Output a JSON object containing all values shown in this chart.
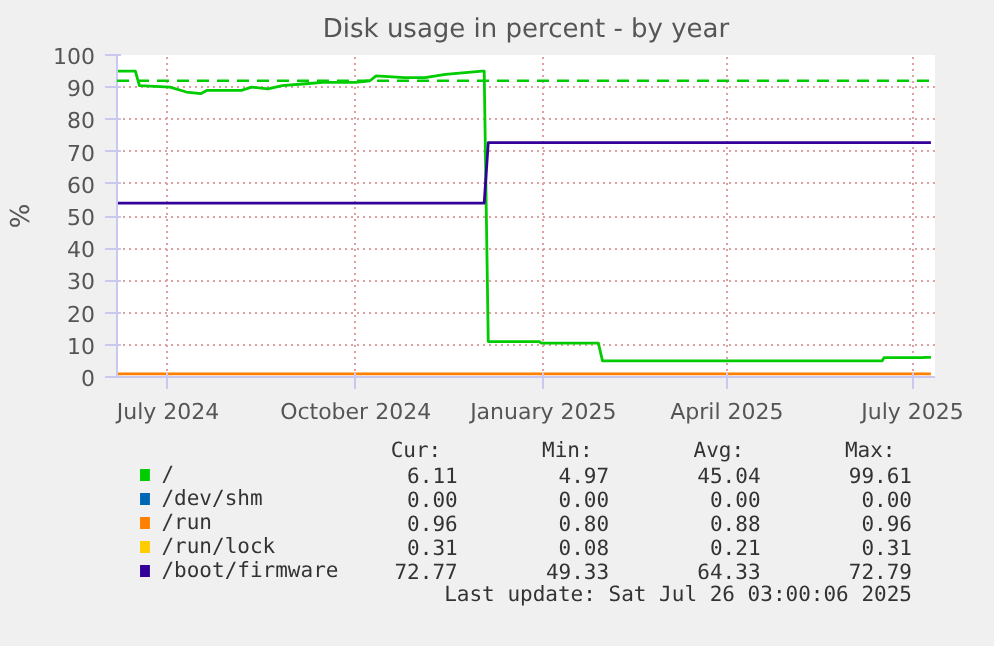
{
  "chart_data": {
    "type": "line",
    "title": "Disk usage in percent - by year",
    "ylabel": "%",
    "xlim": [
      "2024-06-06",
      "2025-07-12"
    ],
    "xticks": [
      {
        "value": "2024-07-01",
        "label": "July 2024"
      },
      {
        "value": "2024-10-01",
        "label": "October 2024"
      },
      {
        "value": "2025-01-01",
        "label": "January 2025"
      },
      {
        "value": "2025-04-01",
        "label": "April 2025"
      },
      {
        "value": "2025-07-01",
        "label": "July 2025"
      }
    ],
    "ylim": [
      0,
      100
    ],
    "yticks": [
      0,
      10,
      20,
      30,
      40,
      50,
      60,
      70,
      80,
      90,
      100
    ],
    "grid": true,
    "legend": "bottom",
    "series": [
      {
        "name": "/",
        "color": "#00cc00",
        "x": [
          "2024-06-06",
          "2024-06-15",
          "2024-06-17",
          "2024-07-02",
          "2024-07-10",
          "2024-07-17",
          "2024-07-20",
          "2024-08-06",
          "2024-08-11",
          "2024-08-19",
          "2024-08-26",
          "2024-09-05",
          "2024-09-15",
          "2024-10-01",
          "2024-10-08",
          "2024-10-11",
          "2024-10-25",
          "2024-11-04",
          "2024-11-14",
          "2024-12-02",
          "2024-12-03",
          "2024-12-05",
          "2024-12-30",
          "2024-12-31",
          "2025-01-28",
          "2025-01-30",
          "2025-06-16",
          "2025-06-17",
          "2025-07-06",
          "2025-07-07",
          "2025-07-10"
        ],
        "values": [
          95,
          95,
          90.5,
          90,
          88.5,
          88,
          89,
          89,
          90,
          89.5,
          90.5,
          91,
          91.5,
          91.5,
          92,
          93.5,
          93,
          93,
          94,
          95,
          95,
          11,
          11,
          10.5,
          10.5,
          5,
          5,
          6,
          6,
          6.11,
          6.11
        ]
      },
      {
        "name": "/dev/shm",
        "color": "#0066b3"
      },
      {
        "name": "/run",
        "color": "#ff8000",
        "x": [
          "2024-06-06",
          "2025-07-10"
        ],
        "values": [
          1,
          1
        ]
      },
      {
        "name": "/run/lock",
        "color": "#ffcc00"
      },
      {
        "name": "/boot/firmware",
        "color": "#330099",
        "x": [
          "2024-06-06",
          "2024-12-03",
          "2024-12-05",
          "2025-07-10"
        ],
        "values": [
          54,
          54,
          72.77,
          72.77
        ]
      }
    ],
    "ref_lines": [
      {
        "axis": "y",
        "value": 92,
        "color": "#00cc00",
        "line_style": "dashed"
      }
    ],
    "annotations": [
      "Cur:",
      "Min:",
      "Avg:",
      "Max:",
      "6.11",
      "4.97",
      "45.04",
      "99.61",
      "0.00",
      "0.00",
      "0.00",
      "0.00",
      "0.96",
      "0.80",
      "0.88",
      "0.96",
      "0.31",
      "0.08",
      "0.21",
      "0.31",
      "72.77",
      "49.33",
      "64.33",
      "72.79",
      "Last update: Sat Jul 26 03:00:06 2025"
    ]
  }
}
